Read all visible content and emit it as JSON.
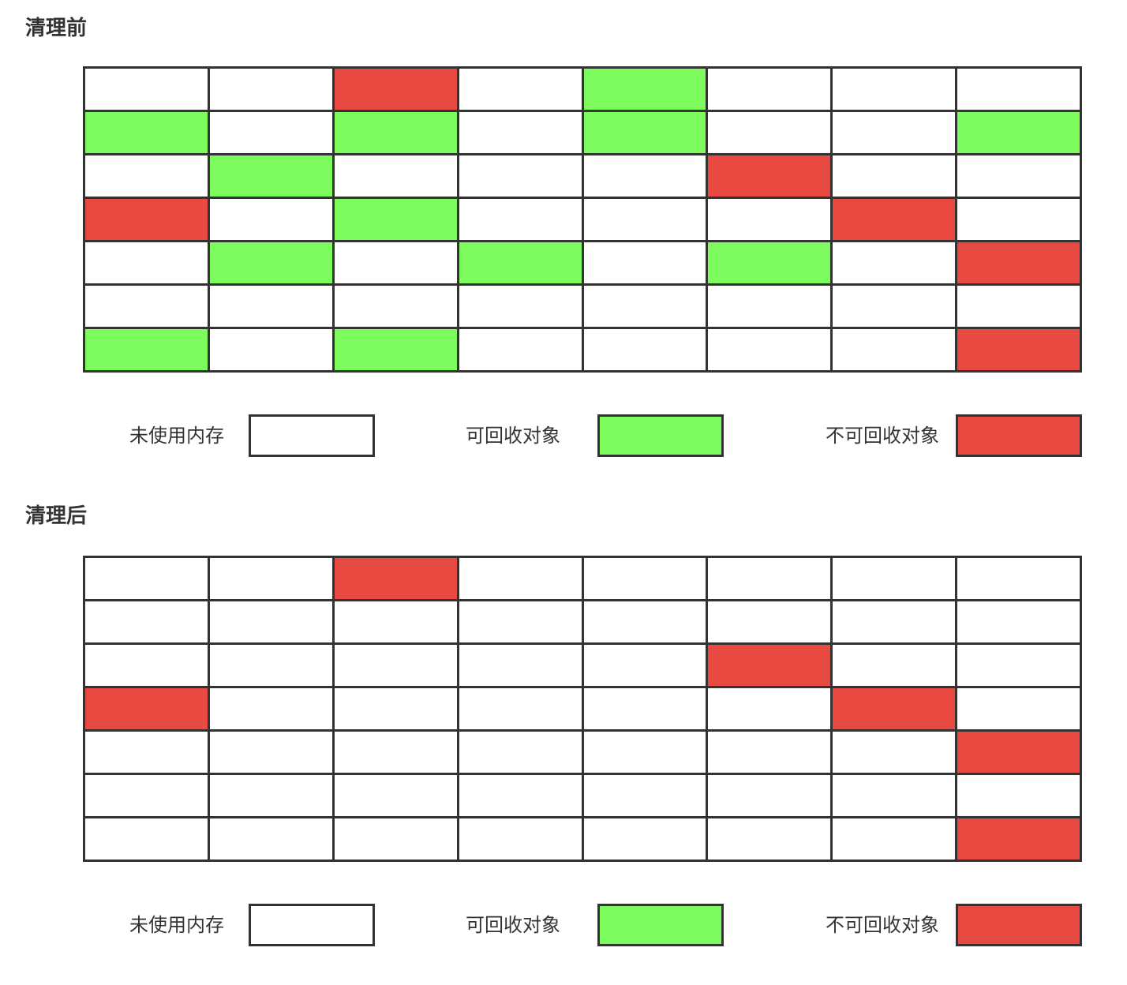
{
  "colors": {
    "unused": "#ffffff",
    "collectable": "#7dfa5c",
    "live": "#e84940",
    "border": "#333333"
  },
  "sections": [
    {
      "title": "清理前",
      "grid": [
        [
          "unused",
          "unused",
          "live",
          "unused",
          "collectable",
          "unused",
          "unused",
          "unused"
        ],
        [
          "collectable",
          "unused",
          "collectable",
          "unused",
          "collectable",
          "unused",
          "unused",
          "collectable"
        ],
        [
          "unused",
          "collectable",
          "unused",
          "unused",
          "unused",
          "live",
          "unused",
          "unused"
        ],
        [
          "live",
          "unused",
          "collectable",
          "unused",
          "unused",
          "unused",
          "live",
          "unused"
        ],
        [
          "unused",
          "collectable",
          "unused",
          "collectable",
          "unused",
          "collectable",
          "unused",
          "live"
        ],
        [
          "unused",
          "unused",
          "unused",
          "unused",
          "unused",
          "unused",
          "unused",
          "unused"
        ],
        [
          "collectable",
          "unused",
          "collectable",
          "unused",
          "unused",
          "unused",
          "unused",
          "live"
        ]
      ],
      "legend": [
        {
          "label": "未使用内存",
          "state": "unused"
        },
        {
          "label": "可回收对象",
          "state": "collectable"
        },
        {
          "label": "不可回收对象",
          "state": "live"
        }
      ]
    },
    {
      "title": "清理后",
      "grid": [
        [
          "unused",
          "unused",
          "live",
          "unused",
          "unused",
          "unused",
          "unused",
          "unused"
        ],
        [
          "unused",
          "unused",
          "unused",
          "unused",
          "unused",
          "unused",
          "unused",
          "unused"
        ],
        [
          "unused",
          "unused",
          "unused",
          "unused",
          "unused",
          "live",
          "unused",
          "unused"
        ],
        [
          "live",
          "unused",
          "unused",
          "unused",
          "unused",
          "unused",
          "live",
          "unused"
        ],
        [
          "unused",
          "unused",
          "unused",
          "unused",
          "unused",
          "unused",
          "unused",
          "live"
        ],
        [
          "unused",
          "unused",
          "unused",
          "unused",
          "unused",
          "unused",
          "unused",
          "unused"
        ],
        [
          "unused",
          "unused",
          "unused",
          "unused",
          "unused",
          "unused",
          "unused",
          "live"
        ]
      ],
      "legend": [
        {
          "label": "未使用内存",
          "state": "unused"
        },
        {
          "label": "可回收对象",
          "state": "collectable"
        },
        {
          "label": "不可回收对象",
          "state": "live"
        }
      ]
    }
  ]
}
